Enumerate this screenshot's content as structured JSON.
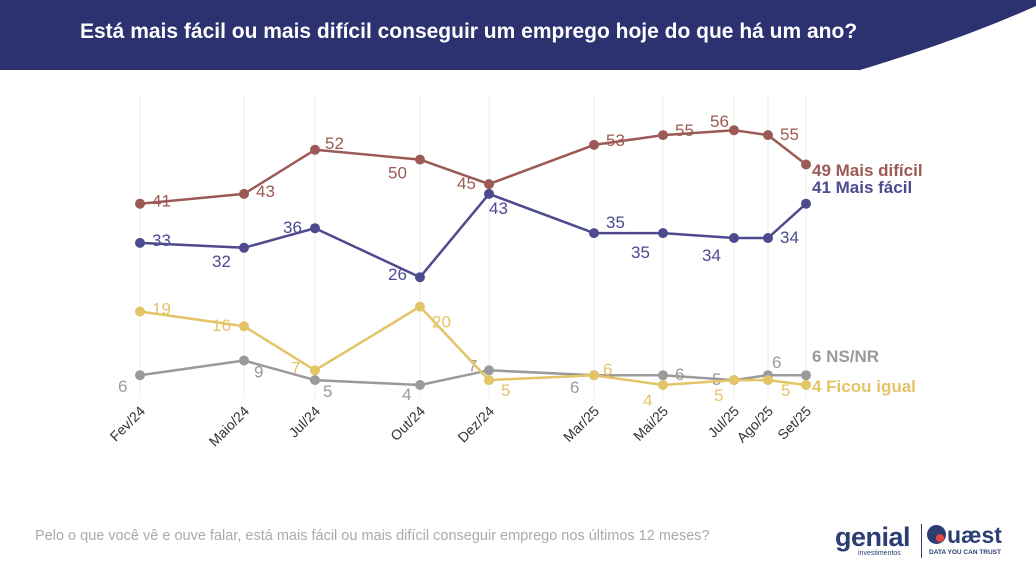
{
  "header": {
    "title": "Está mais fácil ou mais difícil conseguir um emprego hoje do que há um ano?"
  },
  "footnote": "Pelo o que você vê e ouve falar, está mais fácil ou mais difícil conseguir emprego nos últimos 12 meses?",
  "logos": {
    "genial": "genial",
    "genial_sub": "investimentos",
    "quaest": "uæst",
    "quaest_sub": "DATA YOU CAN TRUST"
  },
  "colors": {
    "banner": "#2c3270",
    "mais_dificil": "#9b5a55",
    "mais_facil": "#4d4a8e",
    "ficou_igual": "#e3c466",
    "ns_nr": "#9a9a9a"
  },
  "chart_data": {
    "type": "line",
    "title": "Está mais fácil ou mais difícil conseguir um emprego hoje do que há um ano?",
    "categories": [
      "Fev/24",
      "Maio/24",
      "Jul/24",
      "Out/24",
      "Dez/24",
      "Mar/25",
      "Mai/25",
      "Jul/25",
      "Ago/25",
      "Set/25"
    ],
    "series": [
      {
        "name": "Mais difícil",
        "end_label": "49 Mais difícil",
        "color": "#9b5a55",
        "values": [
          41,
          43,
          52,
          50,
          45,
          53,
          55,
          56,
          55,
          49
        ]
      },
      {
        "name": "Mais fácil",
        "end_label": "41 Mais fácil",
        "color": "#4d4a8e",
        "values": [
          33,
          32,
          36,
          26,
          43,
          35,
          35,
          34,
          34,
          41
        ]
      },
      {
        "name": "Ficou igual",
        "end_label": "4 Ficou igual",
        "color": "#e3c466",
        "values": [
          19,
          16,
          7,
          20,
          5,
          6,
          4,
          5,
          5,
          4
        ]
      },
      {
        "name": "NS/NR",
        "end_label": "6 NS/NR",
        "color": "#9a9a9a",
        "values": [
          6,
          9,
          5,
          4,
          7,
          6,
          6,
          5,
          6,
          6
        ]
      }
    ],
    "grid": "vertical",
    "legend": "end-of-line labels"
  }
}
